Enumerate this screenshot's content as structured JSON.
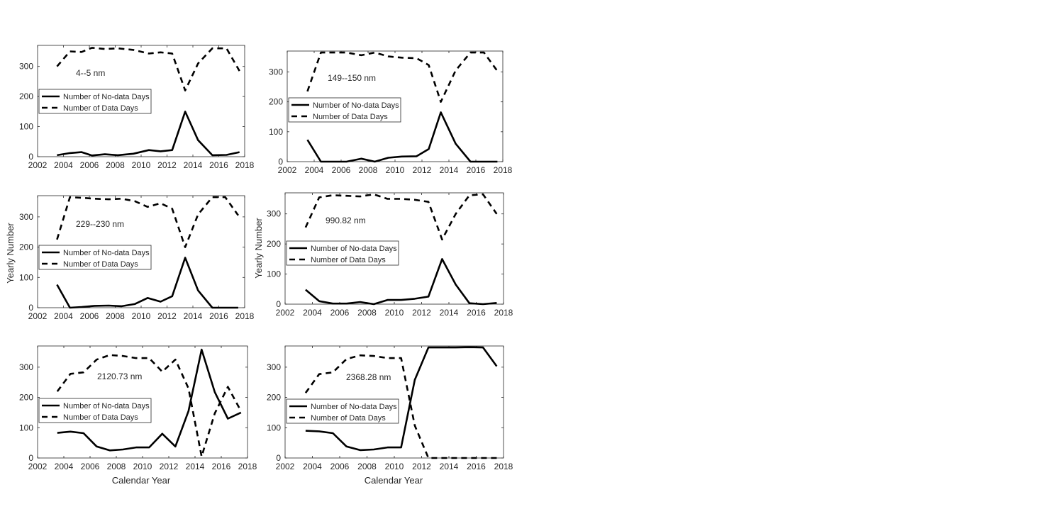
{
  "figure": {
    "ylabel": "Yearly Number",
    "xlabel": "Calendar Year"
  },
  "chart_data": [
    {
      "type": "line",
      "annotation": "4--5 nm",
      "xlim": [
        2002,
        2018
      ],
      "ylim": [
        0,
        370
      ],
      "xticks": [
        2002,
        2004,
        2006,
        2008,
        2010,
        2012,
        2014,
        2016,
        2018
      ],
      "yticks": [
        0,
        100,
        200,
        300
      ],
      "legend_position": "middle-left",
      "x": [
        2003.5,
        2004.5,
        2005.4,
        2006.2,
        2007.2,
        2008.2,
        2009.4,
        2010.6,
        2011.5,
        2012.4,
        2013.4,
        2014.4,
        2015.5,
        2016.6,
        2017.6
      ],
      "series": [
        {
          "name": "Number of No-data Days",
          "style": "solid",
          "values": [
            5,
            12,
            15,
            4,
            8,
            5,
            10,
            22,
            18,
            22,
            150,
            55,
            5,
            6,
            15
          ]
        },
        {
          "name": "Number of Data Days",
          "style": "dashed",
          "values": [
            300,
            350,
            348,
            362,
            358,
            360,
            355,
            343,
            347,
            343,
            220,
            310,
            360,
            360,
            285
          ]
        }
      ]
    },
    {
      "type": "line",
      "annotation": "149--150 nm",
      "xlim": [
        2002,
        2018
      ],
      "ylim": [
        0,
        370
      ],
      "xticks": [
        2002,
        2004,
        2006,
        2008,
        2010,
        2012,
        2014,
        2016,
        2018
      ],
      "yticks": [
        0,
        100,
        200,
        300
      ],
      "legend_position": "middle-left",
      "x": [
        2003.5,
        2004.5,
        2005.4,
        2006.4,
        2007.5,
        2008.5,
        2009.5,
        2010.5,
        2011.6,
        2012.5,
        2013.4,
        2014.5,
        2015.6,
        2016.6,
        2017.6
      ],
      "series": [
        {
          "name": "Number of No-data Days",
          "style": "solid",
          "values": [
            73,
            0,
            0,
            0,
            10,
            0,
            13,
            17,
            18,
            42,
            165,
            60,
            0,
            0,
            0
          ]
        },
        {
          "name": "Number of Data Days",
          "style": "dashed",
          "values": [
            235,
            365,
            365,
            365,
            356,
            365,
            352,
            348,
            346,
            323,
            200,
            305,
            365,
            365,
            303
          ]
        }
      ]
    },
    {
      "type": "line",
      "annotation": "229--230 nm",
      "xlim": [
        2002,
        2018
      ],
      "ylim": [
        0,
        370
      ],
      "xticks": [
        2002,
        2004,
        2006,
        2008,
        2010,
        2012,
        2014,
        2016,
        2018
      ],
      "yticks": [
        0,
        100,
        200,
        300
      ],
      "legend_position": "middle-left",
      "x": [
        2003.5,
        2004.5,
        2005.4,
        2006.4,
        2007.5,
        2008.5,
        2009.5,
        2010.5,
        2011.5,
        2012.4,
        2013.4,
        2014.4,
        2015.5,
        2016.5,
        2017.5
      ],
      "series": [
        {
          "name": "Number of No-data Days",
          "style": "solid",
          "values": [
            76,
            0,
            2,
            6,
            7,
            5,
            12,
            32,
            20,
            38,
            165,
            57,
            0,
            0,
            0
          ]
        },
        {
          "name": "Number of Data Days",
          "style": "dashed",
          "values": [
            225,
            365,
            363,
            360,
            358,
            360,
            352,
            333,
            345,
            327,
            200,
            308,
            365,
            365,
            305
          ]
        }
      ]
    },
    {
      "type": "line",
      "annotation": "990.82 nm",
      "xlim": [
        2002,
        2018
      ],
      "ylim": [
        0,
        370
      ],
      "xticks": [
        2002,
        2004,
        2006,
        2008,
        2010,
        2012,
        2014,
        2016,
        2018
      ],
      "yticks": [
        0,
        100,
        200,
        300
      ],
      "legend_position": "middle-left",
      "x": [
        2003.5,
        2004.5,
        2005.5,
        2006.5,
        2007.5,
        2008.5,
        2009.5,
        2010.5,
        2011.5,
        2012.5,
        2013.5,
        2014.5,
        2015.5,
        2016.5,
        2017.5
      ],
      "series": [
        {
          "name": "Number of No-data Days",
          "style": "solid",
          "values": [
            48,
            10,
            2,
            2,
            7,
            0,
            14,
            14,
            18,
            25,
            150,
            65,
            3,
            0,
            4
          ]
        },
        {
          "name": "Number of Data Days",
          "style": "dashed",
          "values": [
            255,
            355,
            362,
            360,
            358,
            365,
            350,
            350,
            347,
            340,
            215,
            300,
            362,
            365,
            300
          ]
        }
      ]
    },
    {
      "type": "line",
      "annotation": "2120.73 nm",
      "xlim": [
        2002,
        2018
      ],
      "ylim": [
        0,
        370
      ],
      "xticks": [
        2002,
        2004,
        2006,
        2008,
        2010,
        2012,
        2014,
        2016,
        2018
      ],
      "yticks": [
        0,
        100,
        200,
        300
      ],
      "legend_position": "middle-left",
      "x": [
        2003.5,
        2004.5,
        2005.5,
        2006.5,
        2007.5,
        2008.5,
        2009.5,
        2010.5,
        2011.5,
        2012.5,
        2013.5,
        2014.5,
        2015.5,
        2016.5,
        2017.5
      ],
      "series": [
        {
          "name": "Number of No-data Days",
          "style": "solid",
          "values": [
            83,
            87,
            82,
            38,
            25,
            28,
            35,
            35,
            80,
            38,
            155,
            358,
            218,
            130,
            150
          ]
        },
        {
          "name": "Number of Data Days",
          "style": "dashed",
          "values": [
            220,
            278,
            283,
            325,
            340,
            337,
            330,
            330,
            285,
            325,
            230,
            5,
            147,
            235,
            155
          ]
        }
      ]
    },
    {
      "type": "line",
      "annotation": "2368.28 nm",
      "xlim": [
        2002,
        2018
      ],
      "ylim": [
        0,
        370
      ],
      "xticks": [
        2002,
        2004,
        2006,
        2008,
        2010,
        2012,
        2014,
        2016,
        2018
      ],
      "yticks": [
        0,
        100,
        200,
        300
      ],
      "legend_position": "middle-left",
      "x": [
        2003.5,
        2004.5,
        2005.5,
        2006.5,
        2007.5,
        2008.5,
        2009.5,
        2010.5,
        2011.5,
        2012.5,
        2013.5,
        2014.5,
        2015.5,
        2016.5,
        2017.5
      ],
      "series": [
        {
          "name": "Number of No-data Days",
          "style": "solid",
          "values": [
            90,
            88,
            82,
            38,
            26,
            28,
            35,
            35,
            258,
            365,
            365,
            365,
            366,
            365,
            303
          ]
        },
        {
          "name": "Number of Data Days",
          "style": "dashed",
          "values": [
            215,
            277,
            283,
            327,
            339,
            337,
            330,
            330,
            107,
            0,
            0,
            0,
            0,
            0,
            0
          ]
        }
      ]
    }
  ]
}
